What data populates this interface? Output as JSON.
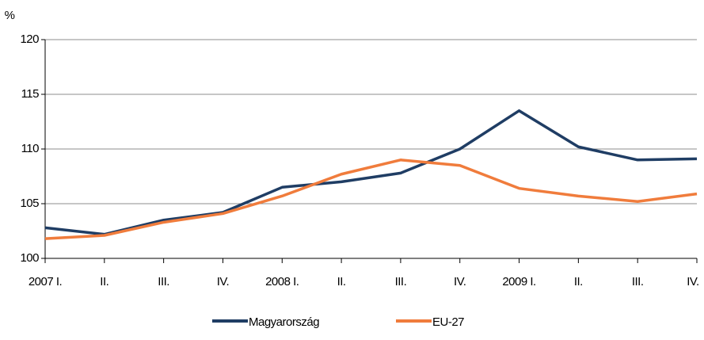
{
  "chart_data": {
    "type": "line",
    "y_label": "%",
    "categories": [
      "2007 I.",
      "II.",
      "III.",
      "IV.",
      "2008 I.",
      "II.",
      "III.",
      "IV.",
      "2009 I.",
      "II.",
      "III.",
      "IV."
    ],
    "series": [
      {
        "name": "Magyarország",
        "color": "#1f3d64",
        "values": [
          102.8,
          102.2,
          103.5,
          104.2,
          106.5,
          107.0,
          107.8,
          110.0,
          113.5,
          110.2,
          109.0,
          109.1
        ]
      },
      {
        "name": "EU-27",
        "color": "#f07c3c",
        "values": [
          101.8,
          102.1,
          103.3,
          104.1,
          105.7,
          107.7,
          109.0,
          108.5,
          106.4,
          105.7,
          105.2,
          105.9
        ]
      }
    ],
    "ylim": [
      100,
      120
    ],
    "yticks": [
      100,
      105,
      110,
      115,
      120
    ],
    "grid": true,
    "legend": "bottom"
  }
}
